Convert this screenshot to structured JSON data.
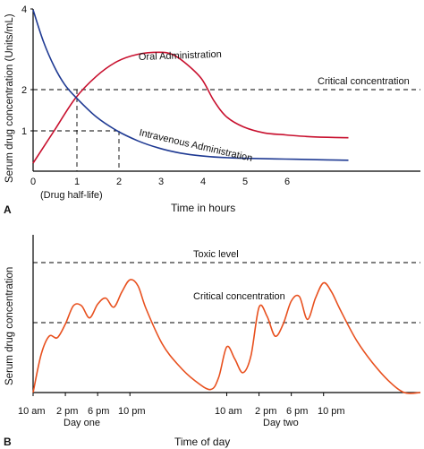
{
  "chart_data": [
    {
      "panel_label": "A",
      "type": "line",
      "xlabel": "Time in hours",
      "ylabel": "Serum drug concentration (Units/mL)",
      "xlim": [
        0,
        7.6
      ],
      "ylim": [
        0,
        4.05
      ],
      "x_ticks": [
        "0",
        "1",
        "2",
        "3",
        "4",
        "5",
        "6"
      ],
      "y_ticks": [
        "1",
        "2",
        "4"
      ],
      "x_tick_note": "(Drug half-life)",
      "reference_lines": [
        {
          "label": "Critical concentration",
          "y": 2
        }
      ],
      "series": [
        {
          "name": "Oral Administration",
          "color": "#c8102e",
          "x": [
            0,
            0.5,
            1,
            1.5,
            2,
            2.5,
            3,
            3.3,
            3.6,
            4,
            4.3,
            4.6,
            5,
            5.5,
            6,
            6.5,
            7,
            7.5
          ],
          "y": [
            0.2,
            1.0,
            1.8,
            2.35,
            2.72,
            2.9,
            2.95,
            2.9,
            2.7,
            2.3,
            1.75,
            1.35,
            1.1,
            0.95,
            0.9,
            0.86,
            0.84,
            0.83
          ]
        },
        {
          "name": "Intravenous Administration",
          "color": "#1f3a93",
          "x": [
            0,
            0.25,
            0.5,
            0.75,
            1,
            1.5,
            2,
            2.5,
            3,
            3.5,
            4,
            4.5,
            5,
            5.5,
            6,
            6.5,
            7,
            7.5
          ],
          "y": [
            4.0,
            3.2,
            2.6,
            2.15,
            1.85,
            1.35,
            1.0,
            0.75,
            0.57,
            0.45,
            0.38,
            0.34,
            0.32,
            0.31,
            0.3,
            0.29,
            0.28,
            0.27
          ]
        }
      ],
      "guides": [
        {
          "x": 1,
          "y": 2
        },
        {
          "x": 2,
          "y": 1
        }
      ]
    },
    {
      "panel_label": "B",
      "type": "line",
      "xlabel": "Time of day",
      "ylabel": "Serum drug concentration",
      "reference_lines": [
        {
          "label": "Toxic level",
          "y": 0.92
        },
        {
          "label": "Critical concentration",
          "y": 0.49
        }
      ],
      "x_ticks": [
        "10 am",
        "2 pm",
        "6 pm",
        "10 pm",
        "10 am",
        "2 pm",
        "6 pm",
        "10 pm"
      ],
      "x_tick_hours": [
        0,
        4,
        8,
        12,
        24,
        28,
        32,
        36
      ],
      "day_labels": [
        {
          "label": "Day one",
          "hour": 4
        },
        {
          "label": "Day two",
          "hour": 28
        }
      ],
      "xlim": [
        0,
        48
      ],
      "ylim": [
        0,
        1
      ],
      "series": [
        {
          "name": "",
          "color": "#e8501e",
          "x": [
            0,
            1,
            2,
            3,
            4,
            5,
            6,
            7,
            8,
            9,
            10,
            11,
            12,
            13,
            14,
            16,
            18,
            20,
            22,
            23,
            24,
            25,
            26,
            27,
            28,
            29,
            30,
            31,
            32,
            33,
            34,
            35,
            36,
            37,
            38,
            40,
            42,
            44,
            46,
            48
          ],
          "y": [
            0.0,
            0.25,
            0.37,
            0.36,
            0.45,
            0.57,
            0.57,
            0.49,
            0.58,
            0.62,
            0.56,
            0.66,
            0.74,
            0.7,
            0.55,
            0.32,
            0.18,
            0.08,
            0.02,
            0.1,
            0.3,
            0.22,
            0.13,
            0.24,
            0.56,
            0.5,
            0.37,
            0.45,
            0.6,
            0.63,
            0.48,
            0.62,
            0.72,
            0.66,
            0.55,
            0.35,
            0.2,
            0.08,
            0.0,
            0.0
          ]
        }
      ]
    }
  ]
}
